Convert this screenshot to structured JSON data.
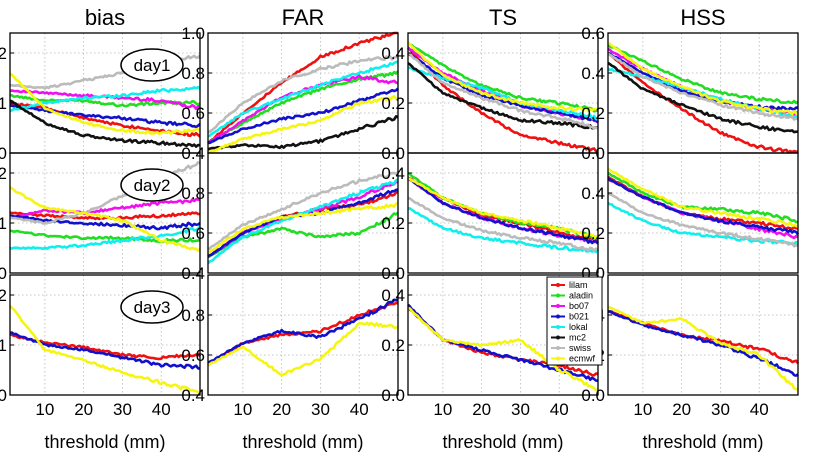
{
  "chart_data": {
    "type": "line",
    "columns": [
      {
        "key": "bias",
        "title": "bias",
        "ylim": [
          0,
          2.4
        ],
        "yticks": [
          "0",
          "1",
          "2"
        ],
        "ytick_values": [
          0,
          1,
          2
        ]
      },
      {
        "key": "far",
        "title": "FAR",
        "ylim": [
          0.4,
          1.0
        ],
        "yticks": [
          "0.4",
          "0.6",
          "0.8",
          "1.0"
        ],
        "ytick_values": [
          0.4,
          0.6,
          0.8,
          1.0
        ]
      },
      {
        "key": "ts",
        "title": "TS",
        "ylim": [
          0,
          0.48
        ],
        "yticks": [
          "0.0",
          "0.2",
          "0.4"
        ],
        "ytick_values": [
          0,
          0.2,
          0.4
        ]
      },
      {
        "key": "hss",
        "title": "HSS",
        "ylim": [
          0,
          0.6
        ],
        "yticks": [
          "0.0",
          "0.2",
          "0.4",
          "0.6"
        ],
        "ytick_values": [
          0,
          0.2,
          0.4,
          0.6
        ]
      }
    ],
    "rows": [
      "day1",
      "day2",
      "day3"
    ],
    "xlabel": "threshold (mm)",
    "xlim": [
      1,
      50
    ],
    "xticks": [
      "10",
      "20",
      "30",
      "40"
    ],
    "xtick_values": [
      10,
      20,
      30,
      40
    ],
    "grid": true,
    "legend": {
      "placement": "inside TS day3 panel, top-right",
      "entries": [
        {
          "name": "lilam",
          "color": "#ee1111"
        },
        {
          "name": "aladin",
          "color": "#22dd22"
        },
        {
          "name": "bo07",
          "color": "#ee11ee"
        },
        {
          "name": "b021",
          "color": "#1111cc"
        },
        {
          "name": "lokal",
          "color": "#11eeee"
        },
        {
          "name": "mc2",
          "color": "#111111"
        },
        {
          "name": "swiss",
          "color": "#bbbbbb"
        },
        {
          "name": "ecmwf",
          "color": "#f5f511"
        }
      ]
    },
    "x": [
      1,
      10,
      20,
      30,
      40,
      50
    ],
    "panels": [
      {
        "row": "day1",
        "col": "bias",
        "series": [
          {
            "name": "lilam",
            "values": [
              1.0,
              0.9,
              0.7,
              0.55,
              0.45,
              0.35
            ]
          },
          {
            "name": "aladin",
            "values": [
              1.15,
              1.05,
              1.05,
              0.95,
              1.0,
              1.0
            ]
          },
          {
            "name": "bo07",
            "values": [
              1.25,
              1.2,
              1.15,
              1.1,
              1.05,
              0.9
            ]
          },
          {
            "name": "b021",
            "values": [
              0.95,
              0.85,
              0.75,
              0.7,
              0.6,
              0.55
            ]
          },
          {
            "name": "lokal",
            "values": [
              0.85,
              1.0,
              1.1,
              1.15,
              1.25,
              1.3
            ]
          },
          {
            "name": "mc2",
            "values": [
              1.05,
              0.6,
              0.35,
              0.25,
              0.2,
              0.15
            ]
          },
          {
            "name": "swiss",
            "values": [
              1.35,
              1.3,
              1.45,
              1.6,
              1.8,
              1.95
            ]
          },
          {
            "name": "ecmwf",
            "values": [
              1.6,
              0.9,
              0.6,
              0.45,
              0.4,
              0.45
            ]
          }
        ]
      },
      {
        "row": "day1",
        "col": "far",
        "series": [
          {
            "name": "lilam",
            "values": [
              0.45,
              0.6,
              0.75,
              0.88,
              0.95,
              1.0
            ]
          },
          {
            "name": "aladin",
            "values": [
              0.45,
              0.55,
              0.65,
              0.72,
              0.77,
              0.8
            ]
          },
          {
            "name": "bo07",
            "values": [
              0.45,
              0.56,
              0.68,
              0.74,
              0.78,
              0.75
            ]
          },
          {
            "name": "b021",
            "values": [
              0.45,
              0.52,
              0.57,
              0.6,
              0.66,
              0.72
            ]
          },
          {
            "name": "lokal",
            "values": [
              0.48,
              0.6,
              0.67,
              0.74,
              0.8,
              0.85
            ]
          },
          {
            "name": "mc2",
            "values": [
              0.42,
              0.44,
              0.43,
              0.46,
              0.52,
              0.58
            ]
          },
          {
            "name": "swiss",
            "values": [
              0.5,
              0.65,
              0.76,
              0.82,
              0.86,
              0.88
            ]
          },
          {
            "name": "ecmwf",
            "values": [
              0.4,
              0.47,
              0.52,
              0.56,
              0.65,
              0.68
            ]
          }
        ]
      },
      {
        "row": "day1",
        "col": "ts",
        "series": [
          {
            "name": "lilam",
            "values": [
              0.42,
              0.27,
              0.16,
              0.07,
              0.04,
              0.01
            ]
          },
          {
            "name": "aladin",
            "values": [
              0.44,
              0.35,
              0.27,
              0.22,
              0.2,
              0.17
            ]
          },
          {
            "name": "bo07",
            "values": [
              0.42,
              0.32,
              0.25,
              0.19,
              0.16,
              0.13
            ]
          },
          {
            "name": "b021",
            "values": [
              0.4,
              0.3,
              0.23,
              0.19,
              0.16,
              0.13
            ]
          },
          {
            "name": "lokal",
            "values": [
              0.34,
              0.3,
              0.26,
              0.2,
              0.17,
              0.14
            ]
          },
          {
            "name": "mc2",
            "values": [
              0.36,
              0.24,
              0.18,
              0.13,
              0.12,
              0.1
            ]
          },
          {
            "name": "swiss",
            "values": [
              0.4,
              0.28,
              0.22,
              0.17,
              0.14,
              0.1
            ]
          },
          {
            "name": "ecmwf",
            "values": [
              0.44,
              0.31,
              0.24,
              0.2,
              0.18,
              0.17
            ]
          }
        ]
      },
      {
        "row": "day1",
        "col": "hss",
        "series": [
          {
            "name": "lilam",
            "values": [
              0.5,
              0.35,
              0.22,
              0.1,
              0.03,
              0.0
            ]
          },
          {
            "name": "aladin",
            "values": [
              0.54,
              0.46,
              0.37,
              0.3,
              0.27,
              0.25
            ]
          },
          {
            "name": "bo07",
            "values": [
              0.52,
              0.42,
              0.33,
              0.26,
              0.22,
              0.2
            ]
          },
          {
            "name": "b021",
            "values": [
              0.5,
              0.4,
              0.31,
              0.26,
              0.23,
              0.22
            ]
          },
          {
            "name": "lokal",
            "values": [
              0.42,
              0.38,
              0.33,
              0.27,
              0.22,
              0.18
            ]
          },
          {
            "name": "mc2",
            "values": [
              0.45,
              0.32,
              0.24,
              0.17,
              0.13,
              0.1
            ]
          },
          {
            "name": "swiss",
            "values": [
              0.5,
              0.38,
              0.3,
              0.24,
              0.2,
              0.17
            ]
          },
          {
            "name": "ecmwf",
            "values": [
              0.55,
              0.42,
              0.33,
              0.26,
              0.22,
              0.2
            ]
          }
        ]
      },
      {
        "row": "day2",
        "col": "bias",
        "series": [
          {
            "name": "lilam",
            "values": [
              1.2,
              1.15,
              1.1,
              1.1,
              1.15,
              1.2
            ]
          },
          {
            "name": "aladin",
            "values": [
              0.85,
              0.75,
              0.7,
              0.7,
              0.65,
              0.65
            ]
          },
          {
            "name": "bo07",
            "values": [
              1.1,
              1.25,
              1.2,
              1.3,
              1.4,
              1.45
            ]
          },
          {
            "name": "b021",
            "values": [
              1.15,
              1.05,
              1.0,
              0.95,
              0.9,
              1.0
            ]
          },
          {
            "name": "lokal",
            "values": [
              0.5,
              0.5,
              0.55,
              0.65,
              0.75,
              0.9
            ]
          },
          {
            "name": "swiss",
            "values": [
              1.1,
              1.0,
              1.2,
              1.55,
              1.9,
              2.2
            ]
          },
          {
            "name": "ecmwf",
            "values": [
              1.7,
              1.3,
              1.2,
              1.05,
              0.65,
              0.45
            ]
          }
        ]
      },
      {
        "row": "day2",
        "col": "far",
        "series": [
          {
            "name": "lilam",
            "values": [
              0.48,
              0.6,
              0.68,
              0.72,
              0.74,
              0.8
            ]
          },
          {
            "name": "aladin",
            "values": [
              0.48,
              0.58,
              0.62,
              0.58,
              0.6,
              0.7
            ]
          },
          {
            "name": "bo07",
            "values": [
              0.48,
              0.6,
              0.67,
              0.72,
              0.78,
              0.86
            ]
          },
          {
            "name": "b021",
            "values": [
              0.48,
              0.6,
              0.68,
              0.7,
              0.75,
              0.82
            ]
          },
          {
            "name": "lokal",
            "values": [
              0.45,
              0.58,
              0.66,
              0.73,
              0.8,
              0.86
            ]
          },
          {
            "name": "swiss",
            "values": [
              0.52,
              0.64,
              0.72,
              0.8,
              0.86,
              0.9
            ]
          },
          {
            "name": "ecmwf",
            "values": [
              0.5,
              0.62,
              0.68,
              0.7,
              0.72,
              0.74
            ]
          }
        ]
      },
      {
        "row": "day2",
        "col": "ts",
        "series": [
          {
            "name": "lilam",
            "values": [
              0.38,
              0.3,
              0.23,
              0.2,
              0.16,
              0.13
            ]
          },
          {
            "name": "aladin",
            "values": [
              0.4,
              0.3,
              0.24,
              0.2,
              0.18,
              0.14
            ]
          },
          {
            "name": "bo07",
            "values": [
              0.38,
              0.28,
              0.22,
              0.18,
              0.15,
              0.12
            ]
          },
          {
            "name": "b021",
            "values": [
              0.38,
              0.28,
              0.22,
              0.18,
              0.15,
              0.12
            ]
          },
          {
            "name": "lokal",
            "values": [
              0.26,
              0.18,
              0.14,
              0.12,
              0.1,
              0.09
            ]
          },
          {
            "name": "swiss",
            "values": [
              0.3,
              0.22,
              0.17,
              0.14,
              0.12,
              0.09
            ]
          },
          {
            "name": "ecmwf",
            "values": [
              0.38,
              0.3,
              0.24,
              0.21,
              0.18,
              0.14
            ]
          }
        ]
      },
      {
        "row": "day2",
        "col": "hss",
        "series": [
          {
            "name": "lilam",
            "values": [
              0.48,
              0.38,
              0.3,
              0.27,
              0.25,
              0.22
            ]
          },
          {
            "name": "aladin",
            "values": [
              0.5,
              0.4,
              0.33,
              0.32,
              0.3,
              0.26
            ]
          },
          {
            "name": "bo07",
            "values": [
              0.47,
              0.38,
              0.3,
              0.26,
              0.22,
              0.18
            ]
          },
          {
            "name": "b021",
            "values": [
              0.47,
              0.38,
              0.3,
              0.26,
              0.23,
              0.2
            ]
          },
          {
            "name": "lokal",
            "values": [
              0.35,
              0.26,
              0.2,
              0.18,
              0.16,
              0.15
            ]
          },
          {
            "name": "swiss",
            "values": [
              0.4,
              0.3,
              0.24,
              0.2,
              0.17,
              0.14
            ]
          },
          {
            "name": "ecmwf",
            "values": [
              0.52,
              0.42,
              0.33,
              0.3,
              0.27,
              0.24
            ]
          }
        ]
      },
      {
        "row": "day3",
        "col": "bias",
        "series": [
          {
            "name": "lilam",
            "values": [
              1.2,
              1.05,
              0.95,
              0.8,
              0.75,
              0.8
            ]
          },
          {
            "name": "b021",
            "values": [
              1.25,
              1.0,
              0.9,
              0.75,
              0.6,
              0.55
            ]
          },
          {
            "name": "ecmwf",
            "values": [
              1.8,
              0.9,
              0.7,
              0.45,
              0.25,
              0.05
            ]
          }
        ]
      },
      {
        "row": "day3",
        "col": "far",
        "series": [
          {
            "name": "lilam",
            "values": [
              0.55,
              0.66,
              0.7,
              0.72,
              0.8,
              0.86
            ]
          },
          {
            "name": "b021",
            "values": [
              0.56,
              0.66,
              0.72,
              0.69,
              0.78,
              0.88
            ]
          },
          {
            "name": "ecmwf",
            "values": [
              0.55,
              0.64,
              0.5,
              0.58,
              0.76,
              0.74
            ]
          }
        ]
      },
      {
        "row": "day3",
        "col": "ts",
        "series": [
          {
            "name": "lilam",
            "values": [
              0.35,
              0.22,
              0.17,
              0.14,
              0.12,
              0.08
            ]
          },
          {
            "name": "b021",
            "values": [
              0.36,
              0.22,
              0.18,
              0.14,
              0.1,
              0.06
            ]
          },
          {
            "name": "ecmwf",
            "values": [
              0.35,
              0.22,
              0.2,
              0.22,
              0.1,
              0.02
            ]
          }
        ]
      },
      {
        "row": "day3",
        "col": "hss",
        "series": [
          {
            "name": "lilam",
            "values": [
              0.42,
              0.36,
              0.3,
              0.27,
              0.23,
              0.16
            ]
          },
          {
            "name": "b021",
            "values": [
              0.42,
              0.35,
              0.3,
              0.25,
              0.18,
              0.1
            ]
          },
          {
            "name": "ecmwf",
            "values": [
              0.44,
              0.36,
              0.38,
              0.26,
              0.2,
              0.02
            ]
          }
        ]
      }
    ],
    "annotations": {
      "day1": "day1",
      "day2": "day2",
      "day3": "day3"
    }
  }
}
